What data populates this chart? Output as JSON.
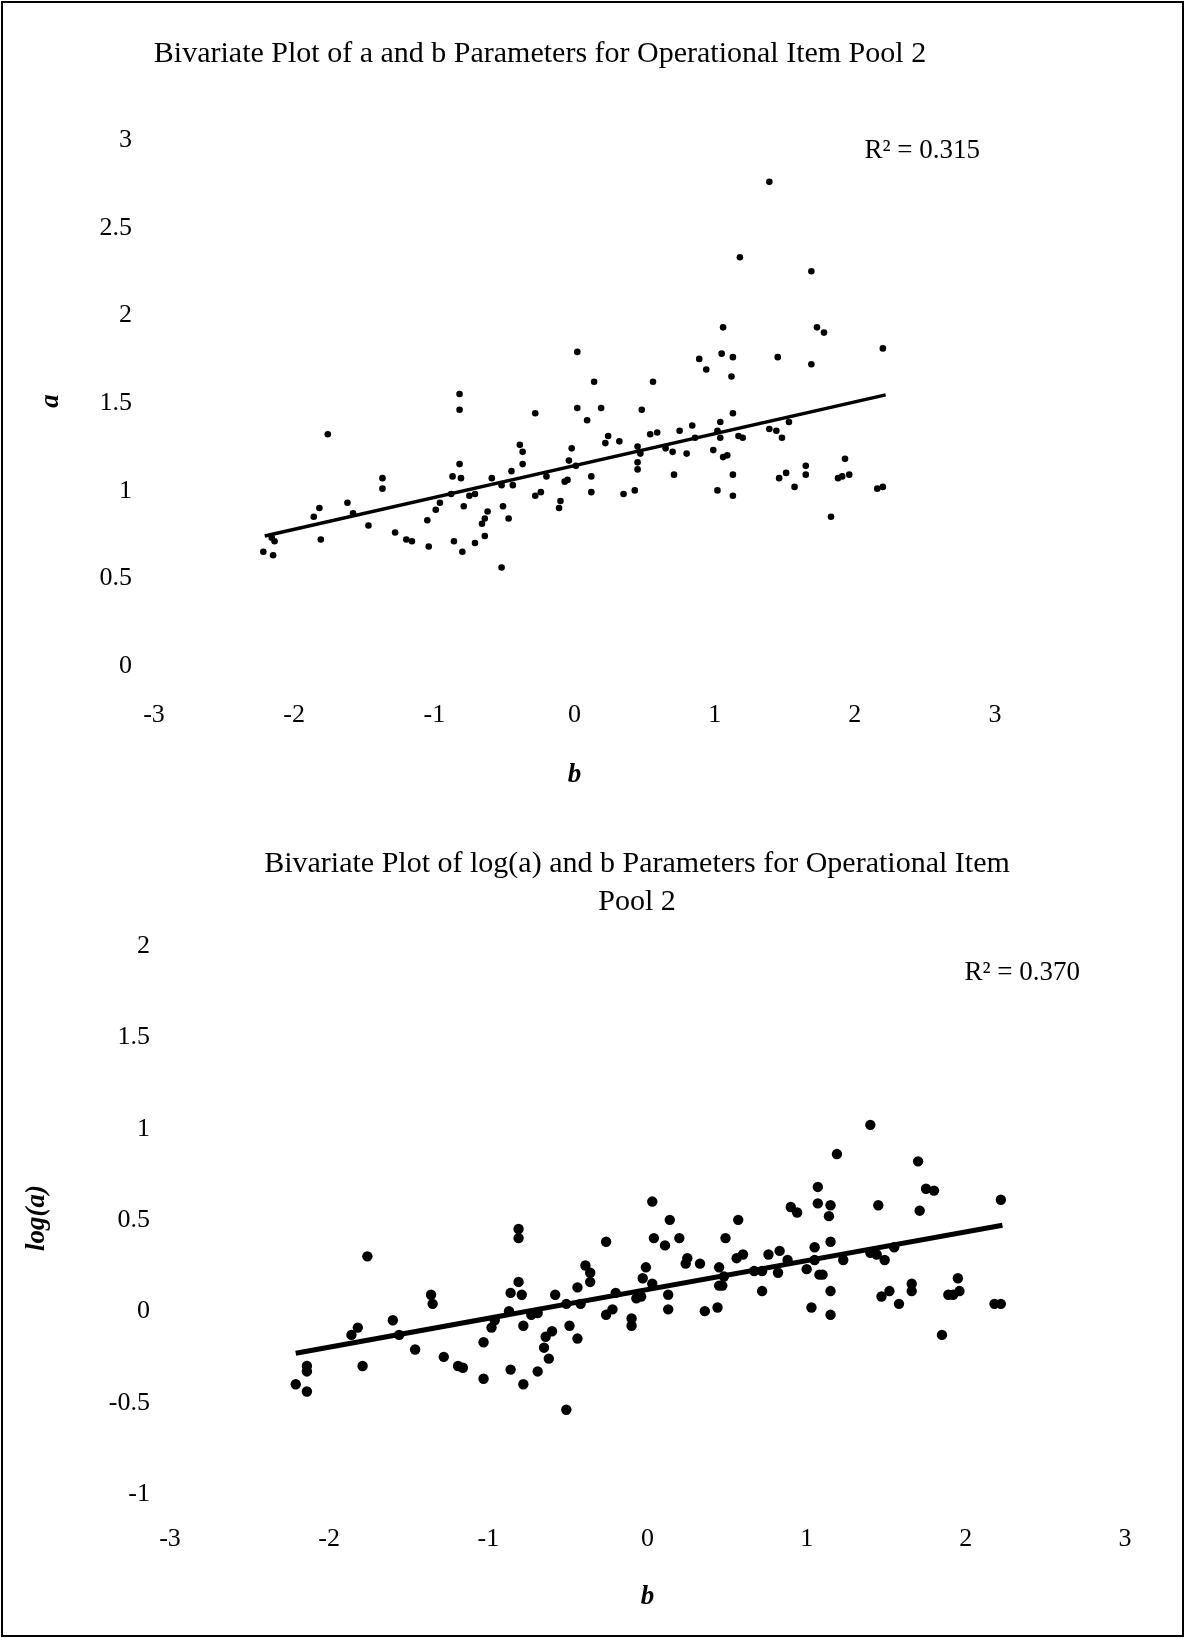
{
  "chart_data": [
    {
      "type": "scatter",
      "title": "Bivariate Plot of a  and b  Parameters for Operational Item Pool 2",
      "xlabel": "b",
      "ylabel": "a",
      "annotations": [
        "R² = 0.315"
      ],
      "xlim": [
        -3,
        3
      ],
      "xticks": [
        -3,
        -2,
        -1,
        0,
        1,
        2,
        3
      ],
      "ylim": [
        0,
        3
      ],
      "yticks": [
        0,
        0.5,
        1,
        1.5,
        2,
        2.5,
        3
      ],
      "series": [
        {
          "marker": "circle",
          "color": "#000000",
          "x": [
            -2.22,
            -2.15,
            -2.14,
            -2.16,
            -1.86,
            -1.82,
            -1.81,
            -1.76,
            -1.62,
            -1.58,
            -1.47,
            -1.37,
            -1.37,
            -1.28,
            -1.2,
            -1.16,
            -1.05,
            -1.04,
            -0.99,
            -0.96,
            -0.88,
            -0.87,
            -0.86,
            -0.82,
            -0.82,
            -0.82,
            -0.81,
            -0.8,
            -0.79,
            -0.75,
            -0.71,
            -0.71,
            -0.66,
            -0.64,
            -0.62,
            -0.64,
            -0.59,
            -0.52,
            -0.52,
            -0.51,
            -0.47,
            -0.45,
            -0.44,
            -0.39,
            -0.37,
            -0.37,
            -0.28,
            -0.28,
            -0.24,
            -0.2,
            -0.11,
            -0.1,
            -0.07,
            -0.05,
            -0.04,
            -0.02,
            0.01,
            0.02,
            0.02,
            0.09,
            0.12,
            0.12,
            0.14,
            0.19,
            0.22,
            0.24,
            0.32,
            0.35,
            0.43,
            0.45,
            0.45,
            0.45,
            0.47,
            0.48,
            0.54,
            0.56,
            0.59,
            0.65,
            0.7,
            0.71,
            0.75,
            0.8,
            0.84,
            0.86,
            0.89,
            0.94,
            0.99,
            1.02,
            1.02,
            1.04,
            1.04,
            1.05,
            1.06,
            1.06,
            1.09,
            1.12,
            1.13,
            1.13,
            1.13,
            1.13,
            1.17,
            1.18,
            1.2,
            1.39,
            1.39,
            1.44,
            1.45,
            1.46,
            1.48,
            1.51,
            1.53,
            1.57,
            1.65,
            1.65,
            1.69,
            1.69,
            1.73,
            1.78,
            1.83,
            1.88,
            1.91,
            1.93,
            1.96,
            2.16,
            2.2,
            2.2
          ],
          "values": [
            0.64,
            0.62,
            0.7,
            0.72,
            0.84,
            0.89,
            0.71,
            1.31,
            0.92,
            0.86,
            0.79,
            1.06,
            1,
            0.75,
            0.71,
            0.7,
            0.82,
            0.67,
            0.88,
            0.92,
            0.97,
            1.07,
            0.7,
            1.54,
            1.45,
            1.14,
            1.06,
            0.64,
            0.9,
            0.96,
            0.97,
            0.69,
            0.8,
            0.83,
            0.87,
            0.73,
            1.06,
            1.02,
            0.55,
            0.9,
            0.83,
            1.1,
            1.02,
            1.25,
            1.21,
            1.14,
            1.43,
            0.96,
            0.98,
            1.07,
            0.89,
            0.93,
            1.04,
            1.05,
            1.16,
            1.23,
            1.13,
            1.78,
            1.46,
            1.39,
            1.07,
            0.98,
            1.61,
            1.46,
            1.26,
            1.3,
            1.27,
            0.97,
            0.99,
            1.24,
            1.15,
            1.11,
            1.2,
            1.45,
            1.31,
            1.61,
            1.32,
            1.23,
            1.21,
            1.08,
            1.33,
            1.2,
            1.36,
            1.29,
            1.74,
            1.68,
            1.22,
            1.33,
            0.99,
            1.38,
            1.29,
            1.77,
            1.92,
            1.18,
            1.19,
            1.64,
            1.75,
            1.43,
            1.08,
            0.96,
            1.3,
            2.32,
            1.29,
            2.75,
            1.34,
            1.33,
            1.75,
            1.06,
            1.29,
            1.09,
            1.38,
            1.01,
            1.13,
            1.08,
            2.24,
            1.71,
            1.92,
            1.89,
            0.84,
            1.06,
            1.07,
            1.17,
            1.08,
            1,
            1.01,
            1.8
          ]
        },
        {
          "type": "line",
          "color": "#000000",
          "x": [
            -2.21,
            2.22
          ],
          "values": [
            0.73,
            1.535
          ]
        }
      ]
    },
    {
      "type": "scatter",
      "title": "Bivariate Plot of log(a)  and b  Parameters for Operational Item Pool 2",
      "xlabel": "b",
      "ylabel": "log(a)",
      "annotations": [
        "R² = 0.370"
      ],
      "xlim": [
        -3,
        3
      ],
      "xticks": [
        -3,
        -2,
        -1,
        0,
        1,
        2,
        3
      ],
      "ylim": [
        -1,
        2
      ],
      "yticks": [
        -1,
        -0.5,
        0,
        0.5,
        1,
        1.5,
        2
      ],
      "series": [
        {
          "marker": "circle",
          "color": "#000000",
          "x": [
            -2.21,
            -2.14,
            -2.14,
            -2.14,
            -1.86,
            -1.82,
            -1.79,
            -1.76,
            -1.6,
            -1.56,
            -1.46,
            -1.36,
            -1.35,
            -1.28,
            -1.19,
            -1.16,
            -1.03,
            -1.03,
            -0.98,
            -0.96,
            -0.87,
            -0.86,
            -0.86,
            -0.81,
            -0.81,
            -0.81,
            -0.79,
            -0.78,
            -0.78,
            -0.73,
            -0.69,
            -0.69,
            -0.65,
            -0.64,
            -0.6,
            -0.62,
            -0.58,
            -0.51,
            -0.51,
            -0.49,
            -0.44,
            -0.44,
            -0.42,
            -0.39,
            -0.36,
            -0.36,
            -0.26,
            -0.26,
            -0.22,
            -0.2,
            -0.1,
            -0.1,
            -0.07,
            -0.04,
            -0.03,
            -0.01,
            0.03,
            0.03,
            0.04,
            0.13,
            0.13,
            0.11,
            0.14,
            0.2,
            0.24,
            0.25,
            0.33,
            0.36,
            0.44,
            0.45,
            0.45,
            0.47,
            0.48,
            0.49,
            0.56,
            0.57,
            0.6,
            0.67,
            0.72,
            0.72,
            0.76,
            0.82,
            0.83,
            0.88,
            0.9,
            0.94,
            1,
            1.03,
            1.05,
            1.05,
            1.07,
            1.07,
            1.08,
            1.1,
            1.14,
            1.15,
            1.15,
            1.15,
            1.15,
            1.19,
            1.23,
            1.4,
            1.4,
            1.45,
            1.44,
            1.47,
            1.49,
            1.52,
            1.55,
            1.58,
            1.66,
            1.66,
            1.7,
            1.71,
            1.75,
            1.8,
            1.85,
            1.89,
            1.92,
            1.95,
            1.96,
            2.18,
            2.22,
            2.22
          ],
          "values": [
            -0.41,
            -0.31,
            -0.34,
            -0.45,
            -0.14,
            -0.1,
            -0.31,
            0.29,
            -0.06,
            -0.14,
            -0.22,
            0.08,
            0.03,
            -0.26,
            -0.31,
            -0.32,
            -0.18,
            -0.38,
            -0.1,
            -0.06,
            -0.01,
            -0.33,
            0.09,
            0.44,
            0.39,
            0.15,
            0.08,
            -0.41,
            -0.09,
            -0.03,
            -0.02,
            -0.34,
            -0.21,
            -0.15,
            -0.12,
            -0.27,
            0.08,
            0.03,
            -0.55,
            -0.09,
            -0.16,
            0.12,
            0.03,
            0.24,
            0.2,
            0.15,
            0.37,
            -0.03,
            0,
            0.09,
            -0.09,
            -0.05,
            0.06,
            0.07,
            0.17,
            0.23,
            0.14,
            0.59,
            0.39,
            0,
            0.08,
            0.35,
            0.49,
            0.39,
            0.25,
            0.28,
            0.25,
            -0.01,
            0.01,
            0.23,
            0.13,
            0.13,
            0.18,
            0.39,
            0.28,
            0.49,
            0.3,
            0.21,
            0.1,
            0.21,
            0.3,
            0.2,
            0.32,
            0.27,
            0.56,
            0.53,
            0.22,
            0.01,
            0.34,
            0.27,
            0.58,
            0.67,
            0.19,
            0.19,
            0.51,
            0.57,
            0.37,
            0.1,
            -0.03,
            0.85,
            0.27,
            1.01,
            0.31,
            0.57,
            0.3,
            0.07,
            0.27,
            0.1,
            0.34,
            0.03,
            0.14,
            0.1,
            0.81,
            0.54,
            0.66,
            0.65,
            -0.14,
            0.08,
            0.08,
            0.17,
            0.1,
            0.03,
            0.03,
            0.6
          ]
        },
        {
          "type": "line",
          "color": "#000000",
          "x": [
            -2.21,
            2.23
          ],
          "values": [
            -0.24,
            0.46
          ]
        }
      ]
    }
  ]
}
